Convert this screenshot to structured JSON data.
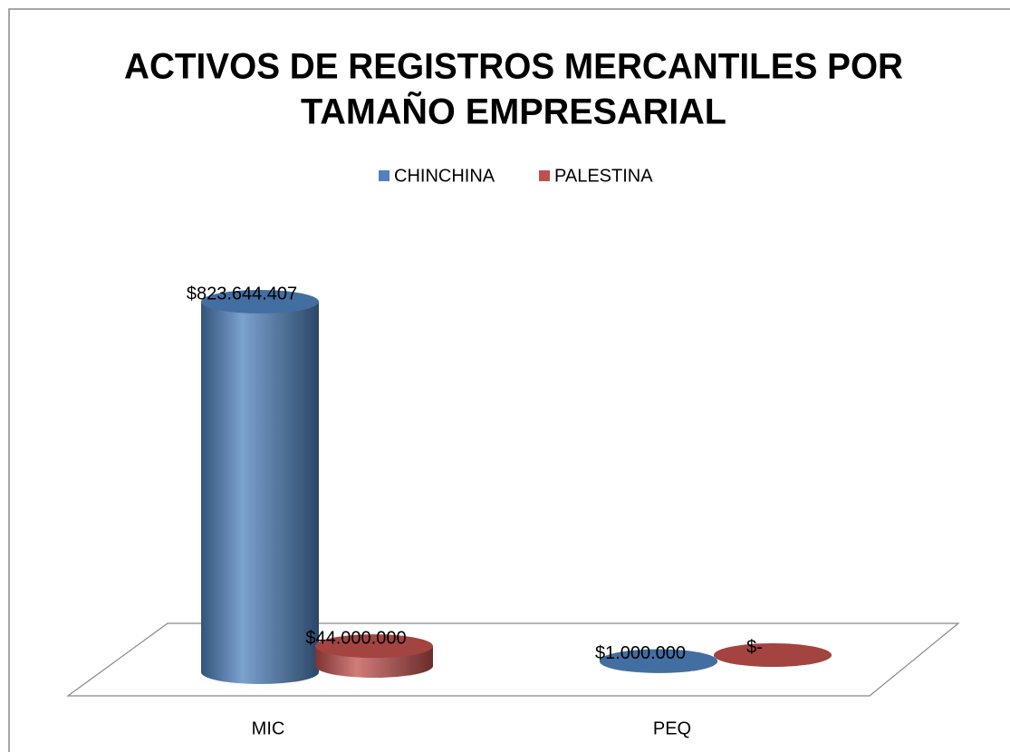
{
  "chart_data": {
    "type": "bar",
    "title": [
      "ACTIVOS DE REGISTROS MERCANTILES POR",
      "TAMAÑO EMPRESARIAL"
    ],
    "categories": [
      "MIC",
      "PEQ"
    ],
    "series": [
      {
        "name": "CHINCHINA",
        "color": "#4f81bd",
        "values": [
          823644407,
          1000000
        ],
        "value_labels": [
          "$823.644.407",
          "$1.000.000"
        ]
      },
      {
        "name": "PALESTINA",
        "color": "#c0504d",
        "values": [
          44000000,
          0
        ],
        "value_labels": [
          "$44.000.000",
          "$-"
        ]
      }
    ],
    "legend": "top"
  }
}
